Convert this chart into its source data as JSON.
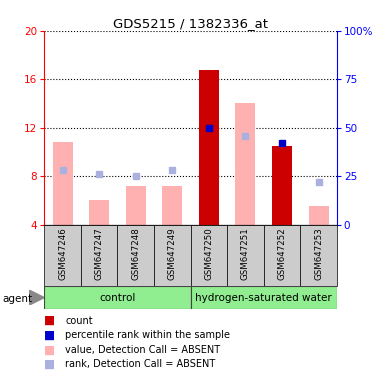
{
  "title": "GDS5215 / 1382336_at",
  "samples": [
    "GSM647246",
    "GSM647247",
    "GSM647248",
    "GSM647249",
    "GSM647250",
    "GSM647251",
    "GSM647252",
    "GSM647253"
  ],
  "value_absent": [
    10.8,
    6.0,
    7.2,
    7.2,
    null,
    14.0,
    null,
    5.5
  ],
  "rank_absent": [
    8.5,
    8.2,
    8.0,
    8.5,
    null,
    11.3,
    null,
    7.5
  ],
  "count_red": [
    null,
    null,
    null,
    null,
    16.8,
    null,
    10.5,
    null
  ],
  "rank_present": [
    null,
    null,
    null,
    null,
    12.0,
    null,
    10.7,
    null
  ],
  "ylim_left": [
    4,
    20
  ],
  "ylim_right": [
    0,
    100
  ],
  "yticks_left": [
    4,
    8,
    12,
    16,
    20
  ],
  "yticks_right": [
    0,
    25,
    50,
    75,
    100
  ],
  "ytick_right_labels": [
    "0",
    "25",
    "50",
    "75",
    "100%"
  ],
  "color_count": "#cc0000",
  "color_rank_present": "#0000cc",
  "color_value_absent": "#ffb0b0",
  "color_rank_absent": "#aab0e0",
  "label_area_color": "#cccccc",
  "group_color": "#90ee90",
  "bar_width": 0.55
}
